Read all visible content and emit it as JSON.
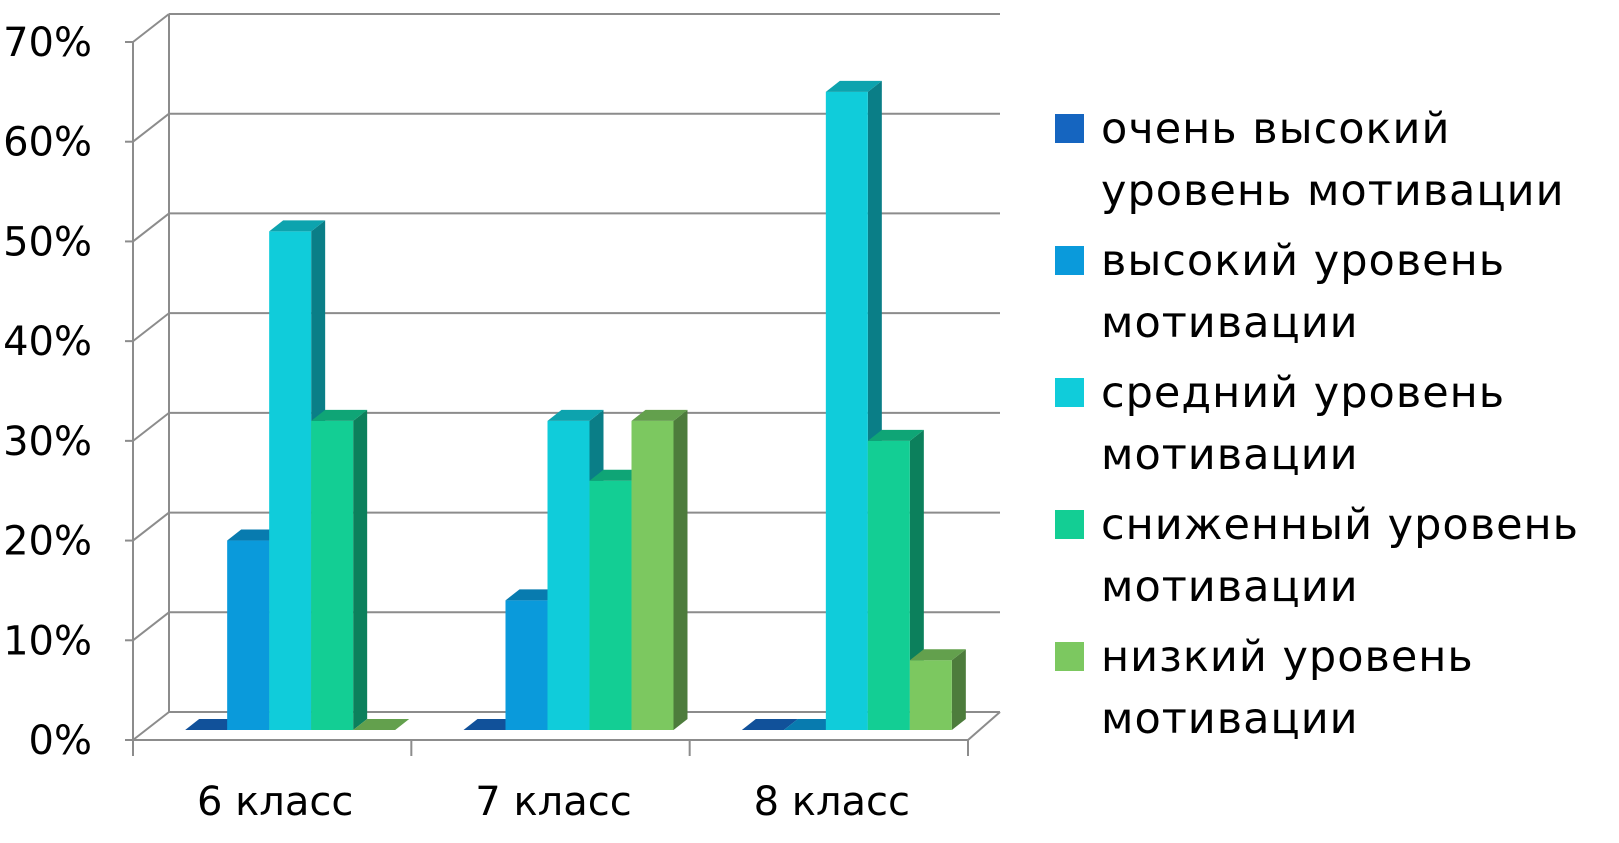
{
  "chart_data": {
    "type": "bar",
    "categories": [
      "6 класс",
      "7 класс",
      "8 класс"
    ],
    "series": [
      {
        "name": "очень высокий уровень мотивации",
        "values": [
          0,
          0,
          0
        ],
        "color": "#1565C0"
      },
      {
        "name": "высокий уровень мотивации",
        "values": [
          19,
          13,
          0
        ],
        "color": "#0A9ADB"
      },
      {
        "name": "средний уровень мотивации",
        "values": [
          50,
          31,
          64
        ],
        "color": "#10CCDA"
      },
      {
        "name": "сниженный уровень мотивации",
        "values": [
          31,
          25,
          29
        ],
        "color": "#13CE94"
      },
      {
        "name": "низкий уровень мотивации",
        "values": [
          0,
          31,
          7
        ],
        "color": "#7CC860"
      }
    ],
    "y_ticks": [
      "0%",
      "10%",
      "20%",
      "30%",
      "40%",
      "50%",
      "60%",
      "70%"
    ],
    "ylim": [
      0,
      70
    ],
    "grid": true,
    "legend_position": "right",
    "style": "3d-clustered-column"
  }
}
